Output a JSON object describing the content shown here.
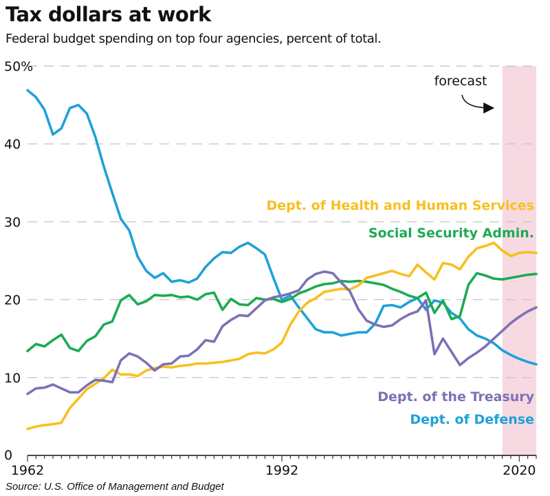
{
  "title": "Tax dollars at work",
  "subtitle": "Federal budget spending on top four agencies, percent of total.",
  "source": "Source: U.S. Office of Management and Budget",
  "chart_data": {
    "type": "line",
    "title": "Tax dollars at work",
    "subtitle": "Federal budget spending on top four agencies, percent of total.",
    "xlim": [
      1962,
      2022
    ],
    "ylim": [
      0,
      50
    ],
    "x_ticks": [
      {
        "value": 1962,
        "label": "1962"
      },
      {
        "value": 1992,
        "label": "1992"
      },
      {
        "value": 2020,
        "label": "2020"
      }
    ],
    "y_ticks": [
      {
        "value": 0,
        "label": "0"
      },
      {
        "value": 10,
        "label": "10"
      },
      {
        "value": 20,
        "label": "20"
      },
      {
        "value": 30,
        "label": "30"
      },
      {
        "value": 40,
        "label": "40"
      },
      {
        "value": 50,
        "label": "50%"
      }
    ],
    "grid": "horizontal dashed",
    "forecast_region": {
      "start": 2018,
      "end": 2022,
      "label": "forecast",
      "color": "#f7d9e2"
    },
    "series": [
      {
        "name": "Dept. of Defense",
        "color": "#1da1d8",
        "x": [
          1962,
          1963,
          1964,
          1965,
          1966,
          1967,
          1968,
          1969,
          1970,
          1971,
          1972,
          1973,
          1974,
          1975,
          1976,
          1977,
          1978,
          1979,
          1980,
          1981,
          1982,
          1983,
          1984,
          1985,
          1986,
          1987,
          1988,
          1989,
          1990,
          1991,
          1992,
          1993,
          1994,
          1995,
          1996,
          1997,
          1998,
          1999,
          2000,
          2001,
          2002,
          2003,
          2004,
          2005,
          2006,
          2007,
          2008,
          2009,
          2010,
          2011,
          2012,
          2013,
          2014,
          2015,
          2016,
          2017,
          2018,
          2019,
          2020,
          2021,
          2022
        ],
        "values": [
          46.9,
          46.0,
          44.4,
          41.2,
          42.0,
          44.6,
          45.0,
          43.9,
          40.9,
          37.1,
          33.7,
          30.4,
          28.9,
          25.5,
          23.7,
          22.8,
          23.4,
          22.3,
          22.5,
          22.2,
          22.7,
          24.2,
          25.3,
          26.1,
          26.0,
          26.8,
          27.3,
          26.6,
          25.8,
          22.8,
          20.0,
          20.5,
          19.0,
          17.6,
          16.2,
          15.8,
          15.8,
          15.4,
          15.6,
          15.8,
          15.8,
          16.9,
          19.2,
          19.3,
          19.0,
          19.7,
          20.2,
          18.7,
          19.9,
          19.6,
          18.3,
          17.6,
          16.2,
          15.4,
          15.0,
          14.4,
          13.5,
          12.9,
          12.4,
          12.0,
          11.7
        ]
      },
      {
        "name": "Social Security Admin.",
        "color": "#1bab52",
        "x": [
          1962,
          1963,
          1964,
          1965,
          1966,
          1967,
          1968,
          1969,
          1970,
          1971,
          1972,
          1973,
          1974,
          1975,
          1976,
          1977,
          1978,
          1979,
          1980,
          1981,
          1982,
          1983,
          1984,
          1985,
          1986,
          1987,
          1988,
          1989,
          1990,
          1991,
          1992,
          1993,
          1994,
          1995,
          1996,
          1997,
          1998,
          1999,
          2000,
          2001,
          2002,
          2003,
          2004,
          2005,
          2006,
          2007,
          2008,
          2009,
          2010,
          2011,
          2012,
          2013,
          2014,
          2015,
          2016,
          2017,
          2018,
          2019,
          2020,
          2021,
          2022
        ],
        "values": [
          13.4,
          14.3,
          14.0,
          14.8,
          15.5,
          13.8,
          13.4,
          14.7,
          15.3,
          16.8,
          17.2,
          19.9,
          20.6,
          19.4,
          19.8,
          20.6,
          20.5,
          20.6,
          20.3,
          20.4,
          20.0,
          20.7,
          20.9,
          18.7,
          20.1,
          19.4,
          19.3,
          20.2,
          20.0,
          20.1,
          19.7,
          20.1,
          20.8,
          21.2,
          21.7,
          22.0,
          22.1,
          22.4,
          22.3,
          22.4,
          22.3,
          22.1,
          21.9,
          21.4,
          21.0,
          20.5,
          20.2,
          20.9,
          18.3,
          19.9,
          17.5,
          17.9,
          21.9,
          23.4,
          23.1,
          22.7,
          22.6,
          22.8,
          23.0,
          23.2,
          23.3
        ]
      },
      {
        "name": "Dept. of Health and Human Services",
        "color": "#f9bf1e",
        "x": [
          1962,
          1963,
          1964,
          1965,
          1966,
          1967,
          1968,
          1969,
          1970,
          1971,
          1972,
          1973,
          1974,
          1975,
          1976,
          1977,
          1978,
          1979,
          1980,
          1981,
          1982,
          1983,
          1984,
          1985,
          1986,
          1987,
          1988,
          1989,
          1990,
          1991,
          1992,
          1993,
          1994,
          1995,
          1996,
          1997,
          1998,
          1999,
          2000,
          2001,
          2002,
          2003,
          2004,
          2005,
          2006,
          2007,
          2008,
          2009,
          2010,
          2011,
          2012,
          2013,
          2014,
          2015,
          2016,
          2017,
          2018,
          2019,
          2020,
          2021,
          2022
        ],
        "values": [
          3.4,
          3.7,
          3.9,
          4.0,
          4.2,
          6.1,
          7.3,
          8.5,
          9.2,
          9.9,
          11.0,
          10.4,
          10.4,
          10.2,
          10.9,
          11.2,
          11.4,
          11.3,
          11.5,
          11.6,
          11.8,
          11.8,
          11.9,
          12.0,
          12.2,
          12.4,
          13.0,
          13.2,
          13.1,
          13.6,
          14.5,
          16.8,
          18.5,
          19.6,
          20.2,
          21.0,
          21.2,
          21.4,
          21.3,
          21.8,
          22.8,
          23.1,
          23.4,
          23.7,
          23.3,
          23.0,
          24.5,
          23.5,
          22.6,
          24.7,
          24.5,
          23.9,
          25.5,
          26.6,
          26.9,
          27.3,
          26.3,
          25.6,
          26.0,
          26.1,
          26.0
        ]
      },
      {
        "name": "Dept. of the Treasury",
        "color": "#7d70b6",
        "x": [
          1962,
          1963,
          1964,
          1965,
          1966,
          1967,
          1968,
          1969,
          1970,
          1971,
          1972,
          1973,
          1974,
          1975,
          1976,
          1977,
          1978,
          1979,
          1980,
          1981,
          1982,
          1983,
          1984,
          1985,
          1986,
          1987,
          1988,
          1989,
          1990,
          1991,
          1992,
          1993,
          1994,
          1995,
          1996,
          1997,
          1998,
          1999,
          2000,
          2001,
          2002,
          2003,
          2004,
          2005,
          2006,
          2007,
          2008,
          2009,
          2010,
          2011,
          2012,
          2013,
          2014,
          2015,
          2016,
          2017,
          2018,
          2019,
          2020,
          2021,
          2022
        ],
        "values": [
          7.9,
          8.6,
          8.7,
          9.1,
          8.6,
          8.1,
          8.1,
          9.0,
          9.7,
          9.6,
          9.4,
          12.2,
          13.1,
          12.7,
          11.9,
          10.9,
          11.7,
          11.8,
          12.7,
          12.8,
          13.6,
          14.8,
          14.6,
          16.6,
          17.4,
          18.0,
          17.9,
          18.9,
          19.9,
          20.3,
          20.5,
          20.8,
          21.2,
          22.6,
          23.3,
          23.6,
          23.4,
          22.2,
          21.1,
          18.8,
          17.3,
          16.8,
          16.5,
          16.7,
          17.5,
          18.1,
          18.5,
          19.9,
          13.0,
          15.0,
          13.3,
          11.6,
          12.5,
          13.2,
          14.0,
          15.0,
          16.0,
          17.0,
          17.8,
          18.5,
          19.0
        ]
      }
    ],
    "series_labels": [
      {
        "name": "Dept. of Health and Human Services",
        "text": "Dept. of Health and Human Services"
      },
      {
        "name": "Social Security Admin.",
        "text": "Social Security Admin."
      },
      {
        "name": "Dept. of the Treasury",
        "text": "Dept. of the Treasury"
      },
      {
        "name": "Dept. of Defense",
        "text": "Dept. of Defense"
      }
    ]
  }
}
